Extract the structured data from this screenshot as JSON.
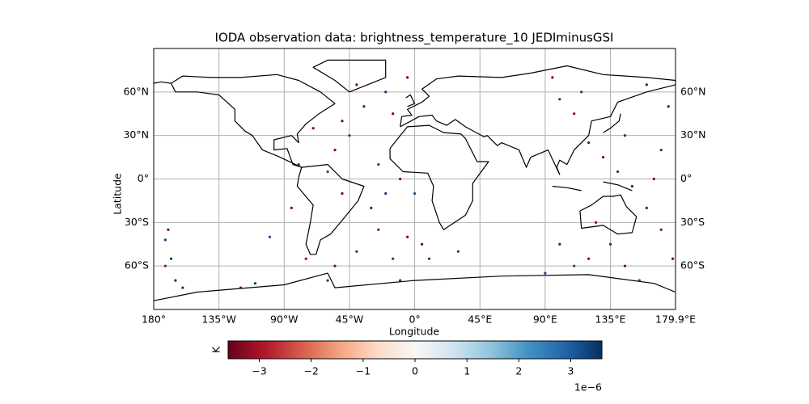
{
  "chart_data": {
    "type": "scatter",
    "title": "IODA observation data: brightness_temperature_10 JEDIminusGSI",
    "xlabel": "Longitude",
    "ylabel": "Latitude",
    "xlim": [
      -180,
      179.9
    ],
    "ylim": [
      -90,
      90
    ],
    "xticks": [
      {
        "value": -180,
        "label": "180°"
      },
      {
        "value": -135,
        "label": "135°W"
      },
      {
        "value": -90,
        "label": "90°W"
      },
      {
        "value": -45,
        "label": "45°W"
      },
      {
        "value": 0,
        "label": "0°"
      },
      {
        "value": 45,
        "label": "45°E"
      },
      {
        "value": 90,
        "label": "90°E"
      },
      {
        "value": 135,
        "label": "135°E"
      },
      {
        "value": 179.9,
        "label": "179.9°E"
      }
    ],
    "yticks": [
      {
        "value": -60,
        "label": "60°S"
      },
      {
        "value": -30,
        "label": "30°S"
      },
      {
        "value": 0,
        "label": "0°"
      },
      {
        "value": 30,
        "label": "30°N"
      },
      {
        "value": 60,
        "label": "60°N"
      }
    ],
    "grid": true,
    "x": [
      -170,
      -168,
      -172,
      -165,
      -160,
      -172,
      -40,
      -35,
      -50,
      -45,
      -55,
      -60,
      -50,
      -30,
      -25,
      -40,
      -55,
      -60,
      -20,
      -15,
      -25,
      -10,
      -20,
      -5,
      -15,
      -10,
      0,
      5,
      10,
      -70,
      -80,
      -85,
      -100,
      -75,
      -110,
      -120,
      95,
      100,
      110,
      120,
      130,
      140,
      150,
      160,
      170,
      135,
      120,
      110,
      145,
      155,
      175,
      170,
      165,
      100,
      125,
      145,
      160,
      90,
      178,
      115,
      -5,
      30
    ],
    "y": [
      -35,
      -55,
      -42,
      -70,
      -75,
      -60,
      65,
      50,
      40,
      30,
      20,
      5,
      -10,
      -20,
      -35,
      -50,
      -60,
      -70,
      60,
      45,
      10,
      0,
      -10,
      -40,
      -55,
      -70,
      -10,
      -45,
      -55,
      35,
      10,
      -20,
      -40,
      -55,
      -72,
      -75,
      70,
      55,
      45,
      25,
      15,
      5,
      -5,
      -20,
      -35,
      -45,
      -55,
      -60,
      -60,
      -70,
      50,
      20,
      0,
      -45,
      -30,
      30,
      65,
      -65,
      -55,
      60,
      70,
      -50
    ],
    "c": [
      -3.5,
      3.5,
      3.3,
      -3.4,
      3.5,
      -3.2,
      -3.4,
      3.5,
      -3.5,
      3.4,
      -3.3,
      3.2,
      -3.5,
      3.5,
      -3.4,
      3.3,
      -3.5,
      3.4,
      3.5,
      -3.5,
      3.4,
      -3.3,
      3.5,
      -3.4,
      3.3,
      -3.5,
      3.2,
      -3.5,
      3.4,
      -3.4,
      3.5,
      -3.5,
      3.3,
      -3.2,
      3.4,
      -3.5,
      -3.5,
      3.4,
      -3.3,
      3.5,
      -3.5,
      3.4,
      -3.4,
      3.5,
      -3.3,
      3.5,
      -3.4,
      3.3,
      -3.5,
      3.4,
      -3.5,
      3.3,
      -3.4,
      3.5,
      -3.2,
      3.5,
      -3.4,
      3.3,
      -3.5,
      3.4,
      -3.5,
      3.3
    ],
    "colorbar": {
      "label": "K",
      "colormap": "RdBu_r",
      "lim": [
        -3.6,
        3.6
      ],
      "ticks": [
        {
          "value": -3,
          "label": "−3"
        },
        {
          "value": -2,
          "label": "−2"
        },
        {
          "value": -1,
          "label": "−1"
        },
        0,
        1,
        2,
        3
      ],
      "offset_label": "1e−6"
    }
  }
}
